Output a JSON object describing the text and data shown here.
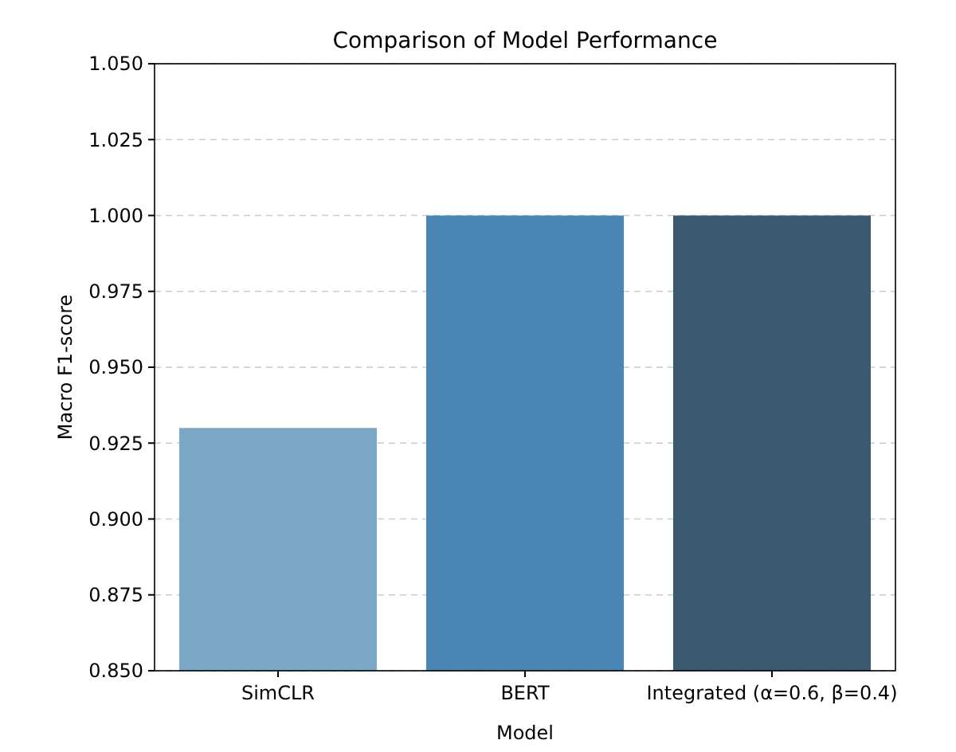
{
  "chart_data": {
    "type": "bar",
    "title": "Comparison of Model Performance",
    "xlabel": "Model",
    "ylabel": "Macro F1-score",
    "categories": [
      "SimCLR",
      "BERT",
      "Integrated (α=0.6, β=0.4)"
    ],
    "values": [
      0.93,
      1.0,
      1.0
    ],
    "colors": [
      "#7ba7c7",
      "#4a86b3",
      "#3b5a70"
    ],
    "ylim": [
      0.85,
      1.05
    ],
    "yticks": [
      {
        "value": 0.85,
        "label": "0.850"
      },
      {
        "value": 0.875,
        "label": "0.875"
      },
      {
        "value": 0.9,
        "label": "0.900"
      },
      {
        "value": 0.925,
        "label": "0.925"
      },
      {
        "value": 0.95,
        "label": "0.950"
      },
      {
        "value": 0.975,
        "label": "0.975"
      },
      {
        "value": 1.0,
        "label": "1.000"
      },
      {
        "value": 1.025,
        "label": "1.025"
      },
      {
        "value": 1.05,
        "label": "1.050"
      }
    ],
    "grid": "y"
  }
}
